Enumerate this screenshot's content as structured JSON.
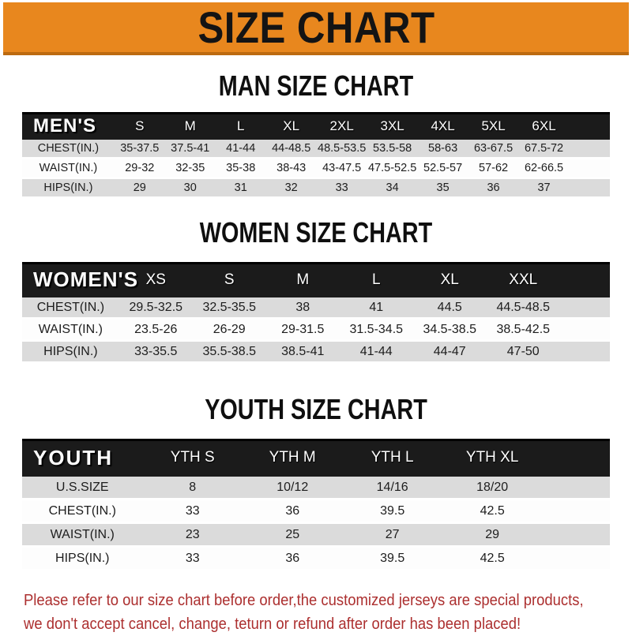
{
  "banner": {
    "title": "SIZE CHART"
  },
  "sections": {
    "men": {
      "title": "MAN SIZE CHART",
      "table": {
        "corner": "MEN'S",
        "columns": [
          "S",
          "M",
          "L",
          "XL",
          "2XL",
          "3XL",
          "4XL",
          "5XL",
          "6XL"
        ],
        "rows": [
          {
            "label": "CHEST(IN.)",
            "values": [
              "35-37.5",
              "37.5-41",
              "41-44",
              "44-48.5",
              "48.5-53.5",
              "53.5-58",
              "58-63",
              "63-67.5",
              "67.5-72"
            ]
          },
          {
            "label": "WAIST(IN.)",
            "values": [
              "29-32",
              "32-35",
              "35-38",
              "38-43",
              "43-47.5",
              "47.5-52.5",
              "52.5-57",
              "57-62",
              "62-66.5"
            ]
          },
          {
            "label": "HIPS(IN.)",
            "values": [
              "29",
              "30",
              "31",
              "32",
              "33",
              "34",
              "35",
              "36",
              "37"
            ]
          }
        ]
      }
    },
    "women": {
      "title": "WOMEN SIZE CHART",
      "table": {
        "corner": "WOMEN'S",
        "columns": [
          "XS",
          "S",
          "M",
          "L",
          "XL",
          "XXL"
        ],
        "rows": [
          {
            "label": "CHEST(IN.)",
            "values": [
              "29.5-32.5",
              "32.5-35.5",
              "38",
              "41",
              "44.5",
              "44.5-48.5"
            ]
          },
          {
            "label": "WAIST(IN.)",
            "values": [
              "23.5-26",
              "26-29",
              "29-31.5",
              "31.5-34.5",
              "34.5-38.5",
              "38.5-42.5"
            ]
          },
          {
            "label": "HIPS(IN.)",
            "values": [
              "33-35.5",
              "35.5-38.5",
              "38.5-41",
              "41-44",
              "44-47",
              "47-50"
            ]
          }
        ]
      }
    },
    "youth": {
      "title": "YOUTH SIZE CHART",
      "table": {
        "corner": "YOUTH",
        "columns": [
          "YTH S",
          "YTH M",
          "YTH L",
          "YTH XL"
        ],
        "rows": [
          {
            "label": "U.S.SIZE",
            "values": [
              "8",
              "10/12",
              "14/16",
              "18/20"
            ]
          },
          {
            "label": "CHEST(IN.)",
            "values": [
              "33",
              "36",
              "39.5",
              "42.5"
            ]
          },
          {
            "label": "WAIST(IN.)",
            "values": [
              "23",
              "25",
              "27",
              "29"
            ]
          },
          {
            "label": "HIPS(IN.)",
            "values": [
              "33",
              "36",
              "39.5",
              "42.5"
            ]
          }
        ]
      }
    }
  },
  "footer": {
    "line1": "Please refer to our size chart before order,the customized jerseys are special products,",
    "line2": "we don't accept cancel, change, teturn or refund after order has been placed!"
  },
  "colors": {
    "banner_orange": "#E8871E",
    "banner_border": "#BC6A10",
    "header_black": "#1B1B1B",
    "row_gray": "#DBDBDB",
    "footer_red": "#AC2F2F",
    "title_black": "#141414"
  }
}
